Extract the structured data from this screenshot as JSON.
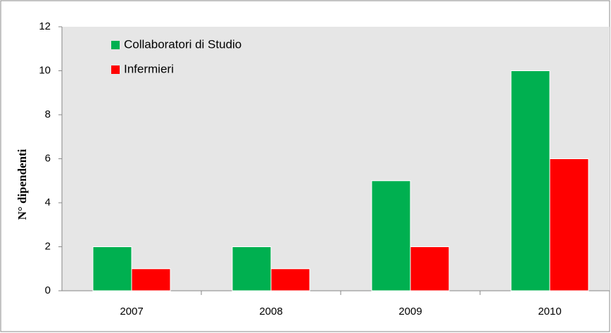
{
  "chart_data": {
    "type": "bar",
    "ylabel": "N° dipendenti",
    "categories": [
      "2007",
      "2008",
      "2009",
      "2010"
    ],
    "series": [
      {
        "name": "Collaboratori di Studio",
        "color": "#00b050",
        "values": [
          2,
          2,
          5,
          10
        ]
      },
      {
        "name": "Infermieri",
        "color": "#ff0000",
        "values": [
          1,
          1,
          2,
          6
        ]
      }
    ],
    "ylim": [
      0,
      12
    ],
    "yticks": [
      0,
      2,
      4,
      6,
      8,
      10,
      12
    ],
    "grid": false,
    "legend": "upper left"
  }
}
